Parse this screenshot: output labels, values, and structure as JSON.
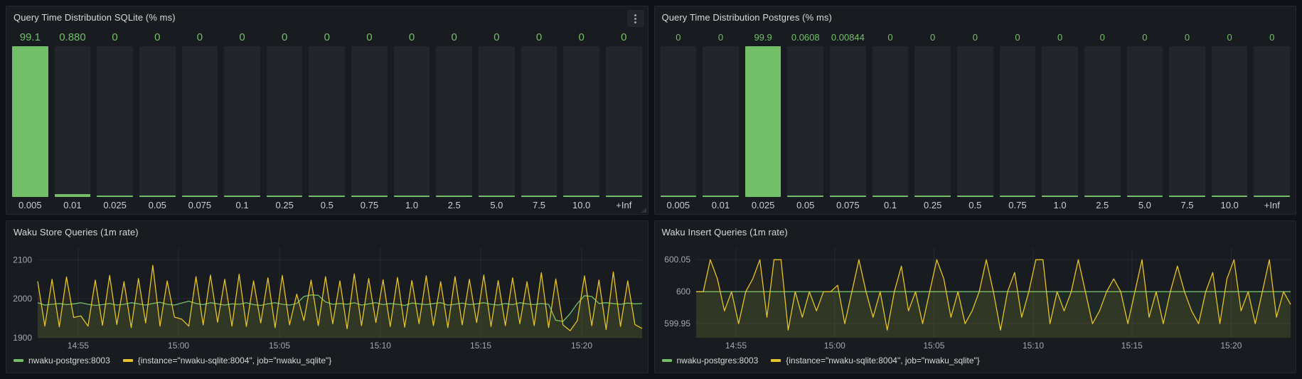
{
  "app": {
    "name": "Grafana monitoring dashboard"
  },
  "colors": {
    "page_bg": "#111217",
    "panel_bg": "#181b1f",
    "bar_track": "#22252b",
    "green": "#73bf69",
    "yellow": "#e6c32a",
    "title_text": "#d8d9da",
    "tick_text": "#a4a9b0",
    "grid": "rgba(204,204,220,0.08)"
  },
  "icons": {
    "panel_menu": "kebab-vertical-dots"
  },
  "chart_data": [
    {
      "id": "sqlite-distribution",
      "type": "bar",
      "title": "Query Time Distribution SQLite (% ms)",
      "categories": [
        "0.005",
        "0.01",
        "0.025",
        "0.05",
        "0.075",
        "0.1",
        "0.25",
        "0.5",
        "0.75",
        "1.0",
        "2.5",
        "5.0",
        "7.5",
        "10.0",
        "+Inf"
      ],
      "values": [
        99.1,
        0.88,
        0,
        0,
        0,
        0,
        0,
        0,
        0,
        0,
        0,
        0,
        0,
        0,
        0
      ],
      "value_labels": [
        "99.1",
        "0.880",
        "0",
        "0",
        "0",
        "0",
        "0",
        "0",
        "0",
        "0",
        "0",
        "0",
        "0",
        "0",
        "0"
      ],
      "bar_color": "#73bf69",
      "ylim": [
        0,
        100
      ]
    },
    {
      "id": "postgres-distribution",
      "type": "bar",
      "title": "Query Time Distribution Postgres (% ms)",
      "categories": [
        "0.005",
        "0.01",
        "0.025",
        "0.05",
        "0.075",
        "0.1",
        "0.25",
        "0.5",
        "0.75",
        "1.0",
        "2.5",
        "5.0",
        "7.5",
        "10.0",
        "+Inf"
      ],
      "values": [
        0,
        0,
        99.9,
        0.0608,
        0.00844,
        0,
        0,
        0,
        0,
        0,
        0,
        0,
        0,
        0,
        0
      ],
      "value_labels": [
        "0",
        "0",
        "99.9",
        "0.0608",
        "0.00844",
        "0",
        "0",
        "0",
        "0",
        "0",
        "0",
        "0",
        "0",
        "0",
        "0"
      ],
      "bar_color": "#73bf69",
      "ylim": [
        0,
        100
      ]
    },
    {
      "id": "store-queries",
      "type": "line",
      "title": "Waku Store Queries (1m rate)",
      "ylim": [
        1900,
        2130
      ],
      "y_ticks": [
        {
          "value": 1900,
          "label": "1900"
        },
        {
          "value": 2000,
          "label": "2000"
        },
        {
          "value": 2100,
          "label": "2100"
        }
      ],
      "x_ticks": [
        {
          "pos": 0.067,
          "label": "14:55"
        },
        {
          "pos": 0.233,
          "label": "15:00"
        },
        {
          "pos": 0.4,
          "label": "15:05"
        },
        {
          "pos": 0.567,
          "label": "15:10"
        },
        {
          "pos": 0.733,
          "label": "15:15"
        },
        {
          "pos": 0.9,
          "label": "15:20"
        }
      ],
      "series": [
        {
          "name": "nwaku-postgres:8003",
          "color": "#73bf69",
          "values": [
            1990,
            1984,
            1986,
            1988,
            1985,
            1987,
            1990,
            1986,
            1983,
            1985,
            1988,
            1984,
            1986,
            1990,
            1987,
            1984,
            1988,
            1991,
            1986,
            1984,
            1989,
            1994,
            1988,
            1985,
            1990,
            1987,
            1984,
            1987,
            1986,
            1990,
            1985,
            1983,
            1987,
            1990,
            1986,
            1984,
            1988,
            2006,
            2010,
            2009,
            1992,
            1986,
            1988,
            1986,
            1990,
            1984,
            1987,
            1990,
            1985,
            1988,
            1986,
            1983,
            1989,
            1987,
            1985,
            1988,
            1990,
            1984,
            1986,
            1989,
            1985,
            1987,
            1990,
            1986,
            1984,
            1988,
            1985,
            1990,
            1987,
            1985,
            1988,
            1986,
            1945,
            1942,
            1962,
            1988,
            2008,
            2006,
            1988,
            1990,
            1988,
            1986,
            1989,
            1987,
            1988
          ]
        },
        {
          "name": "{instance=\"nwaku-sqlite:8004\", job=\"nwaku_sqlite\"}",
          "color": "#e6c32a",
          "values": [
            2045,
            1930,
            2050,
            1928,
            2056,
            1952,
            1956,
            1930,
            2048,
            1932,
            2060,
            1934,
            2044,
            1926,
            2052,
            1938,
            2086,
            1930,
            2046,
            1953,
            1948,
            1930,
            2057,
            1933,
            2061,
            1940,
            2050,
            1930,
            2063,
            1929,
            2046,
            1938,
            2054,
            1926,
            2060,
            1933,
            2012,
            1944,
            2048,
            1931,
            2057,
            1936,
            2046,
            1923,
            2064,
            1931,
            2052,
            1939,
            2049,
            1929,
            2055,
            1927,
            2047,
            1936,
            2059,
            1931,
            2044,
            1926,
            2057,
            1933,
            2050,
            1939,
            2061,
            1929,
            2047,
            1931,
            2054,
            1936,
            2044,
            1931,
            2067,
            1926,
            2051,
            1933,
            1918,
            1944,
            2059,
            1931,
            2048,
            1921,
            2069,
            1929,
            2046,
            1934,
            1924
          ]
        }
      ],
      "legend_position": "bottom"
    },
    {
      "id": "insert-queries",
      "type": "line",
      "title": "Waku Insert Queries (1m rate)",
      "ylim": [
        599.928,
        600.068
      ],
      "y_ticks": [
        {
          "value": 599.95,
          "label": "599.95"
        },
        {
          "value": 600,
          "label": "600"
        },
        {
          "value": 600.05,
          "label": "600.05"
        }
      ],
      "x_ticks": [
        {
          "pos": 0.067,
          "label": "14:55"
        },
        {
          "pos": 0.233,
          "label": "15:00"
        },
        {
          "pos": 0.4,
          "label": "15:05"
        },
        {
          "pos": 0.567,
          "label": "15:10"
        },
        {
          "pos": 0.733,
          "label": "15:15"
        },
        {
          "pos": 0.9,
          "label": "15:20"
        }
      ],
      "series": [
        {
          "name": "nwaku-postgres:8003",
          "color": "#73bf69",
          "constant": 600,
          "count": 85
        },
        {
          "name": "{instance=\"nwaku-sqlite:8004\", job=\"nwaku_sqlite\"}",
          "color": "#e6c32a",
          "values": [
            600,
            600,
            600.05,
            600.02,
            599.97,
            600,
            599.95,
            600,
            600.02,
            600.05,
            599.96,
            600.05,
            600.05,
            599.94,
            600,
            599.96,
            600,
            599.97,
            600,
            600,
            600.01,
            599.95,
            600,
            600.05,
            600,
            599.96,
            600,
            599.94,
            600,
            600.04,
            599.97,
            600,
            599.95,
            600,
            600.05,
            600.02,
            599.96,
            600,
            599.95,
            599.97,
            600,
            600.05,
            600,
            599.94,
            600,
            600.03,
            599.96,
            600,
            600.05,
            600.05,
            599.95,
            600,
            599.97,
            600,
            600.05,
            600,
            599.95,
            599.97,
            600,
            600.02,
            600,
            599.95,
            600,
            600.05,
            599.96,
            600,
            599.95,
            600,
            600.04,
            600,
            599.97,
            599.95,
            600,
            600.03,
            599.95,
            600.02,
            600.05,
            599.97,
            600,
            599.95,
            600,
            600.05,
            599.96,
            600,
            599.98
          ]
        }
      ],
      "legend_position": "bottom"
    }
  ]
}
